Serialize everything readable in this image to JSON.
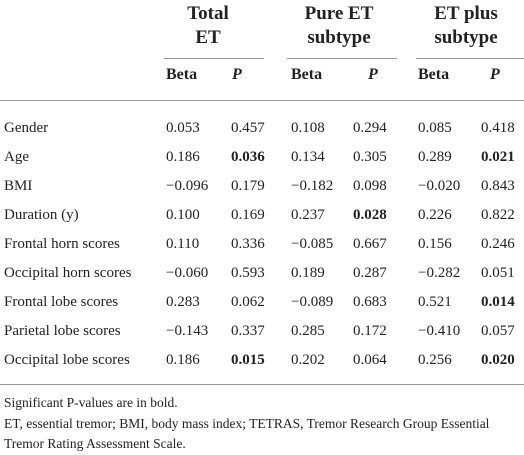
{
  "header": {
    "groups": [
      {
        "line1": "Total",
        "line2": "ET"
      },
      {
        "line1": "Pure ET",
        "line2": "subtype"
      },
      {
        "line1": "ET plus",
        "line2": "subtype"
      }
    ],
    "beta_label": "Beta",
    "p_label": "P"
  },
  "rows": [
    {
      "label": "Gender",
      "cells": [
        "0.053",
        "0.457",
        "0.108",
        "0.294",
        "0.085",
        "0.418"
      ],
      "bold": [
        false,
        false,
        false,
        false,
        false,
        false
      ]
    },
    {
      "label": "Age",
      "cells": [
        "0.186",
        "0.036",
        "0.134",
        "0.305",
        "0.289",
        "0.021"
      ],
      "bold": [
        false,
        true,
        false,
        false,
        false,
        true
      ]
    },
    {
      "label": "BMI",
      "cells": [
        "−0.096",
        "0.179",
        "−0.182",
        "0.098",
        "−0.020",
        "0.843"
      ],
      "bold": [
        false,
        false,
        false,
        false,
        false,
        false
      ]
    },
    {
      "label": "Duration (y)",
      "cells": [
        "0.100",
        "0.169",
        "0.237",
        "0.028",
        "0.226",
        "0.822"
      ],
      "bold": [
        false,
        false,
        false,
        true,
        false,
        false
      ]
    },
    {
      "label": "Frontal horn scores",
      "cells": [
        "0.110",
        "0.336",
        "−0.085",
        "0.667",
        "0.156",
        "0.246"
      ],
      "bold": [
        false,
        false,
        false,
        false,
        false,
        false
      ]
    },
    {
      "label": "Occipital horn scores",
      "cells": [
        "−0.060",
        "0.593",
        "0.189",
        "0.287",
        "−0.282",
        "0.051"
      ],
      "bold": [
        false,
        false,
        false,
        false,
        false,
        false
      ]
    },
    {
      "label": "Frontal lobe scores",
      "cells": [
        "0.283",
        "0.062",
        "−0.089",
        "0.683",
        "0.521",
        "0.014"
      ],
      "bold": [
        false,
        false,
        false,
        false,
        false,
        true
      ]
    },
    {
      "label": "Parietal lobe scores",
      "cells": [
        "−0.143",
        "0.337",
        "0.285",
        "0.172",
        "−0.410",
        "0.057"
      ],
      "bold": [
        false,
        false,
        false,
        false,
        false,
        false
      ]
    },
    {
      "label": "Occipital lobe scores",
      "cells": [
        "0.186",
        "0.015",
        "0.202",
        "0.064",
        "0.256",
        "0.020"
      ],
      "bold": [
        false,
        true,
        false,
        false,
        false,
        true
      ]
    }
  ],
  "footnotes": [
    "Significant P-values are in bold.",
    "ET, essential tremor; BMI, body mass index; TETRAS, Tremor Research Group Essential Tremor Rating Assessment Scale."
  ]
}
